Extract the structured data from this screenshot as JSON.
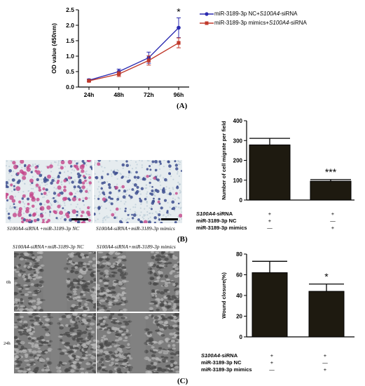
{
  "colors": {
    "nc_series": "#2a2ab0",
    "mimics_series": "#c0392b",
    "bar_fill": "#1e1a10"
  },
  "panel_a": {
    "label": "(A)",
    "significance": "*",
    "legend": [
      {
        "prefix": "miR-3189-3p NC+",
        "gene": "S100A4",
        "suffix": "-siRNA"
      },
      {
        "prefix": "miR-3189-3p mimics+",
        "gene": "S100A4",
        "suffix": "-siRNA"
      }
    ]
  },
  "panel_b": {
    "label": "(B)",
    "significance": "***",
    "captions": [
      {
        "gene": "S100A4",
        "text": "-siRNA +miR-3189-3p NC"
      },
      {
        "gene": "S100A4",
        "text": "-siRNA+miR-3189-3p mimics"
      }
    ]
  },
  "panel_c": {
    "label": "(C)",
    "significance": "*",
    "column_captions": [
      {
        "gene": "S100A4",
        "text": "-siRNA+miR-3189-3p NC"
      },
      {
        "gene": "S100A4",
        "text": "-siRNA+miR-3189-3p mimics"
      }
    ],
    "row_labels": [
      "0h",
      "24h"
    ]
  },
  "conditions_b": {
    "rows": [
      {
        "gene": "S100A4",
        "label": "-siRNA",
        "values": [
          "+",
          "+"
        ]
      },
      {
        "gene": "",
        "label": "miR-3189-3p NC",
        "values": [
          "+",
          "—"
        ]
      },
      {
        "gene": "",
        "label": "miR-3189-3p mimics",
        "values": [
          "—",
          "+"
        ]
      }
    ]
  },
  "conditions_c": {
    "rows": [
      {
        "gene": "S100A4",
        "label": "-siRNA",
        "values": [
          "+",
          "+"
        ]
      },
      {
        "gene": "",
        "label": "miR-3189-3p NC",
        "values": [
          "+",
          "—"
        ]
      },
      {
        "gene": "",
        "label": "miR-3189-3p mimics",
        "values": [
          "—",
          "+"
        ]
      }
    ]
  },
  "chart_data": [
    {
      "type": "line",
      "ylabel": "OD value (450nm)",
      "xlabel": "",
      "categories": [
        "24h",
        "48h",
        "72h",
        "96h"
      ],
      "ylim": [
        0,
        2.5
      ],
      "yticks": [
        "0.0",
        "0.5",
        "1.0",
        "1.5",
        "2.0",
        "2.5"
      ],
      "series": [
        {
          "name": "miR-3189-3p NC+S100A4-siRNA",
          "values": [
            0.22,
            0.5,
            0.95,
            1.92
          ],
          "errors": [
            0.04,
            0.08,
            0.18,
            0.32
          ]
        },
        {
          "name": "miR-3189-3p mimics+S100A4-siRNA",
          "values": [
            0.2,
            0.42,
            0.86,
            1.43
          ],
          "errors": [
            0.03,
            0.08,
            0.15,
            0.16
          ]
        }
      ]
    },
    {
      "type": "bar",
      "ylabel": "Number of cell migrate per field",
      "categories": [
        "NC",
        "mimics"
      ],
      "ylim": [
        0,
        400
      ],
      "yticks": [
        "0",
        "100",
        "200",
        "300",
        "400"
      ],
      "values": [
        278,
        95
      ],
      "errors": [
        33,
        8
      ]
    },
    {
      "type": "bar",
      "ylabel": "Wound closure(%)",
      "categories": [
        "NC",
        "mimics"
      ],
      "ylim": [
        0,
        80
      ],
      "yticks": [
        "0",
        "20",
        "40",
        "60",
        "80"
      ],
      "values": [
        62,
        44
      ],
      "errors": [
        11,
        7
      ]
    }
  ]
}
